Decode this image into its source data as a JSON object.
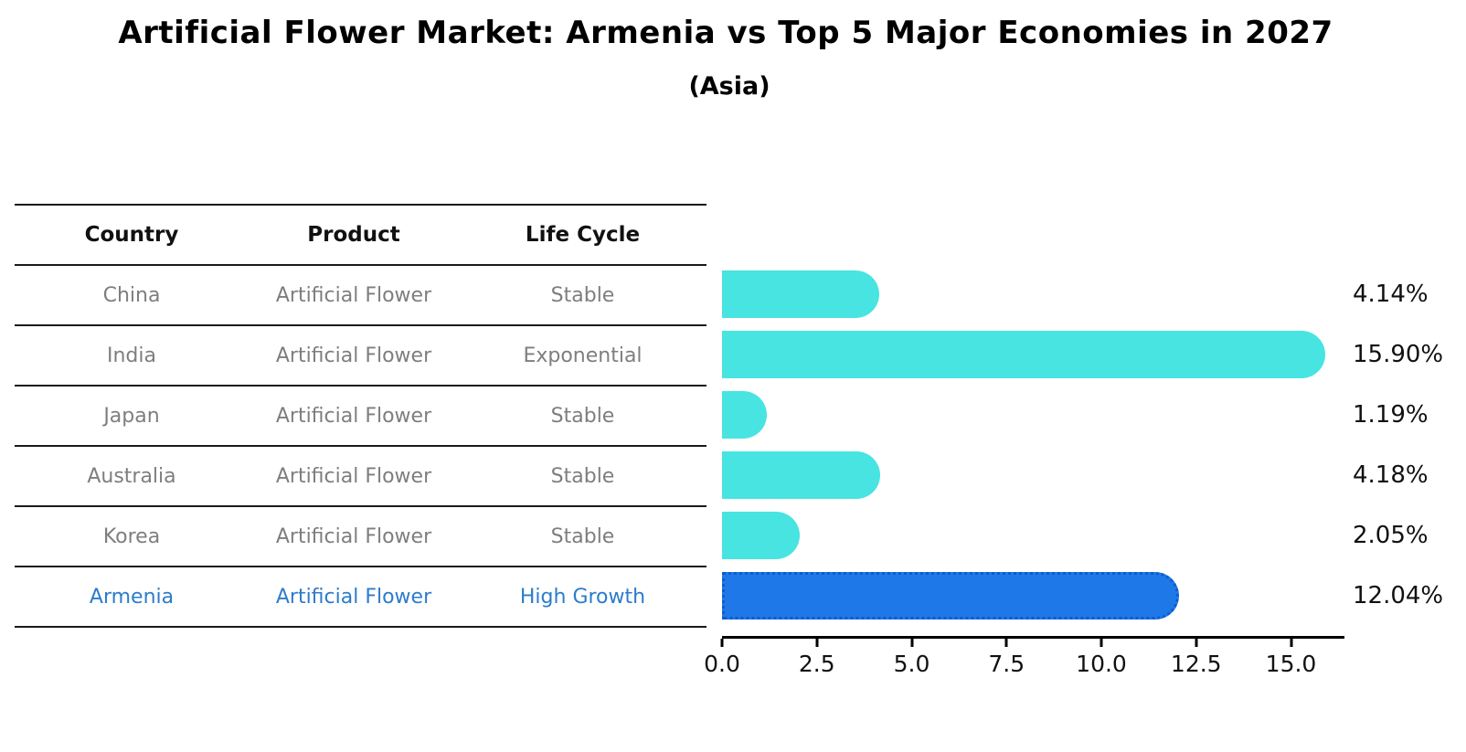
{
  "title": "Artificial Flower Market: Armenia vs Top 5 Major Economies in 2027",
  "subtitle": "(Asia)",
  "table": {
    "headers": [
      "Country",
      "Product",
      "Life Cycle"
    ],
    "rows": [
      {
        "country": "China",
        "product": "Artificial Flower",
        "life_cycle": "Stable",
        "highlight": false
      },
      {
        "country": "India",
        "product": "Artificial Flower",
        "life_cycle": "Exponential",
        "highlight": false
      },
      {
        "country": "Japan",
        "product": "Artificial Flower",
        "life_cycle": "Stable",
        "highlight": false
      },
      {
        "country": "Australia",
        "product": "Artificial Flower",
        "life_cycle": "Stable",
        "highlight": false
      },
      {
        "country": "Korea",
        "product": "Artificial Flower",
        "life_cycle": "Stable",
        "highlight": false
      },
      {
        "country": "Armenia",
        "product": "Artificial Flower",
        "life_cycle": "High Growth",
        "highlight": true
      }
    ]
  },
  "chart_data": {
    "type": "bar",
    "orientation": "horizontal",
    "title": "Artificial Flower Market: Armenia vs Top 5 Major Economies in 2027",
    "subtitle": "(Asia)",
    "categories": [
      "China",
      "India",
      "Japan",
      "Australia",
      "Korea",
      "Armenia"
    ],
    "values": [
      4.14,
      15.9,
      1.19,
      4.18,
      2.05,
      12.04
    ],
    "value_labels": [
      "4.14%",
      "15.90%",
      "1.19%",
      "4.18%",
      "2.05%",
      "12.04%"
    ],
    "x_ticks": [
      0.0,
      2.5,
      5.0,
      7.5,
      10.0,
      12.5,
      15.0
    ],
    "x_tick_labels": [
      "0.0",
      "2.5",
      "5.0",
      "7.5",
      "10.0",
      "12.5",
      "15.0"
    ],
    "xlim": [
      0,
      16.4
    ],
    "highlight_index": 5,
    "bar_color": "#47e4e2",
    "highlight_bar_color": "#1e78e8",
    "highlight_border_color": "#0e5ccd",
    "grid": false,
    "legend": false
  },
  "colors": {
    "background": "#ffffff",
    "title_text": "#000000",
    "table_line": "#1a1a1a",
    "table_header_text": "#111111",
    "table_body_text": "#7e7e7e",
    "highlight_text": "#2d7ccb",
    "axis": "#000000",
    "value_label_text": "#111111"
  }
}
